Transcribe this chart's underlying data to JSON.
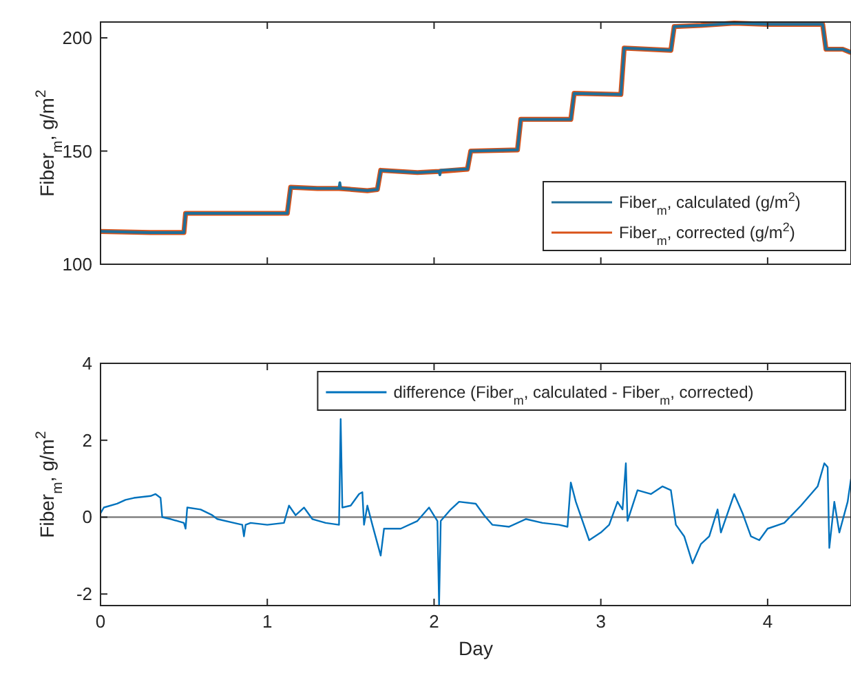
{
  "chart_data": [
    {
      "type": "line",
      "ylabel": "Fiber$_{m}$, g/m$^{2}$",
      "xlim": [
        0,
        4.5
      ],
      "xticks": [
        0,
        1,
        2,
        3,
        4
      ],
      "ylim": [
        100,
        207
      ],
      "yticks": [
        100,
        150,
        200
      ],
      "tick_labels": "y",
      "legend": "bottom right",
      "grid": false,
      "series": [
        {
          "name": "Fiber$_{m}$, calculated (g/m$^{2}$)",
          "color": "#1f6f9a",
          "x": [
            0,
            0.3,
            0.5,
            0.51,
            0.8,
            1.12,
            1.14,
            1.3,
            1.43,
            1.435,
            1.44,
            1.6,
            1.66,
            1.68,
            1.9,
            2.03,
            2.035,
            2.04,
            2.2,
            2.22,
            2.5,
            2.52,
            2.82,
            2.84,
            3.12,
            3.14,
            3.42,
            3.44,
            3.6,
            3.8,
            4.0,
            4.33,
            4.35,
            4.45,
            4.5
          ],
          "values": [
            114.5,
            114,
            114,
            122.5,
            122.5,
            122.5,
            134,
            133.5,
            133.5,
            136,
            133.5,
            132.5,
            133,
            141.5,
            140.5,
            141,
            139.5,
            141.5,
            142,
            150,
            150.5,
            164,
            164,
            175.5,
            175,
            195.5,
            194.5,
            205,
            205.5,
            206.5,
            206,
            206,
            195,
            195,
            193.5
          ]
        },
        {
          "name": "Fiber$_{m}$, corrected (g/m$^{2}$)",
          "color": "#d95319",
          "x": [
            0,
            0.3,
            0.5,
            0.51,
            0.8,
            1.12,
            1.14,
            1.3,
            1.43,
            1.6,
            1.66,
            1.68,
            1.9,
            2.03,
            2.2,
            2.22,
            2.5,
            2.52,
            2.82,
            2.84,
            3.12,
            3.14,
            3.42,
            3.44,
            3.6,
            3.8,
            4.0,
            4.33,
            4.35,
            4.45,
            4.5
          ],
          "values": [
            114.5,
            114,
            114,
            122.5,
            122.5,
            122.5,
            134,
            133.5,
            133.5,
            132.5,
            133,
            141.5,
            140.5,
            141,
            142,
            150,
            150.5,
            164,
            164,
            175.5,
            175,
            195.5,
            194.5,
            205,
            205.5,
            206.5,
            206,
            206,
            195,
            195,
            193.5
          ]
        }
      ]
    },
    {
      "type": "line",
      "xlabel": "Day",
      "ylabel": "Fiber$_{m}$, g/m$^{2}$",
      "xlim": [
        0,
        4.5
      ],
      "xticks": [
        0,
        1,
        2,
        3,
        4
      ],
      "ylim": [
        -2.3,
        4
      ],
      "yticks": [
        -2,
        0,
        2,
        4
      ],
      "legend": "top right",
      "grid": false,
      "ref_lines": [
        {
          "axis": "y",
          "value": 0,
          "color": "#808080"
        }
      ],
      "series": [
        {
          "name": "difference (Fiber$_{m}$, calculated - Fiber$_{m}$, corrected)",
          "color": "#0072bd",
          "x": [
            0,
            0.02,
            0.1,
            0.15,
            0.2,
            0.3,
            0.33,
            0.36,
            0.37,
            0.42,
            0.5,
            0.51,
            0.52,
            0.6,
            0.67,
            0.7,
            0.8,
            0.85,
            0.86,
            0.87,
            0.9,
            1.0,
            1.1,
            1.13,
            1.17,
            1.22,
            1.27,
            1.35,
            1.43,
            1.44,
            1.45,
            1.5,
            1.55,
            1.57,
            1.58,
            1.6,
            1.63,
            1.68,
            1.7,
            1.8,
            1.9,
            1.97,
            2.02,
            2.03,
            2.04,
            2.1,
            2.15,
            2.25,
            2.3,
            2.35,
            2.45,
            2.55,
            2.65,
            2.75,
            2.8,
            2.82,
            2.85,
            2.93,
            3.0,
            3.05,
            3.1,
            3.13,
            3.15,
            3.16,
            3.22,
            3.3,
            3.37,
            3.42,
            3.45,
            3.5,
            3.55,
            3.6,
            3.65,
            3.7,
            3.72,
            3.8,
            3.85,
            3.9,
            3.95,
            4.0,
            4.1,
            4.2,
            4.3,
            4.34,
            4.36,
            4.37,
            4.4,
            4.43,
            4.48,
            4.5
          ],
          "values": [
            0.1,
            0.25,
            0.35,
            0.45,
            0.5,
            0.55,
            0.6,
            0.5,
            0,
            -0.05,
            -0.15,
            -0.3,
            0.25,
            0.2,
            0.05,
            -0.05,
            -0.15,
            -0.2,
            -0.5,
            -0.2,
            -0.15,
            -0.2,
            -0.15,
            0.3,
            0.05,
            0.25,
            -0.05,
            -0.15,
            -0.2,
            2.55,
            0.25,
            0.3,
            0.6,
            0.65,
            -0.2,
            0.3,
            -0.2,
            -1,
            -0.3,
            -0.3,
            -0.1,
            0.25,
            -0.1,
            -2.3,
            -0.1,
            0.2,
            0.4,
            0.35,
            0.05,
            -0.2,
            -0.25,
            -0.05,
            -0.15,
            -0.2,
            -0.25,
            0.9,
            0.4,
            -0.6,
            -0.4,
            -0.2,
            0.4,
            0.2,
            1.4,
            -0.1,
            0.7,
            0.6,
            0.8,
            0.7,
            -0.2,
            -0.5,
            -1.2,
            -0.7,
            -0.5,
            0.2,
            -0.4,
            0.6,
            0.1,
            -0.5,
            -0.6,
            -0.3,
            -0.15,
            0.3,
            0.8,
            1.4,
            1.3,
            -0.8,
            0.4,
            -0.4,
            0.4,
            1
          ]
        }
      ]
    }
  ]
}
